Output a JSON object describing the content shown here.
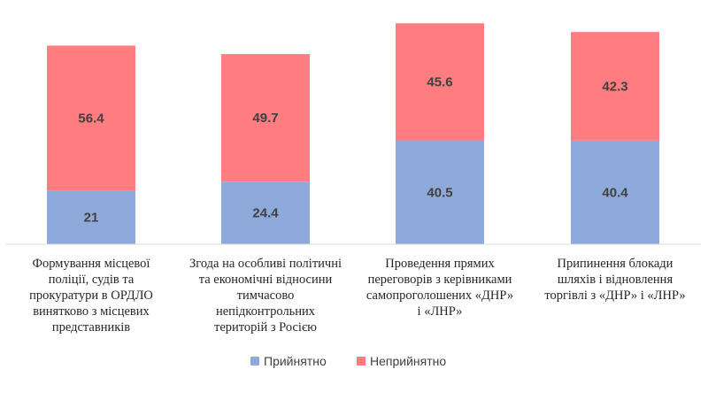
{
  "chart_data": {
    "type": "bar",
    "stacked": true,
    "categories": [
      [
        "Формування місцевої",
        "поліції, судів та",
        "прокуратури в ОРДЛО",
        "винятково з місцевих",
        "представників"
      ],
      [
        "Згода на особливі політичні",
        "та економічні відносини",
        "тимчасово",
        "непідконтрольних",
        "територій з Росією"
      ],
      [
        "Проведення прямих",
        "переговорів з керівниками",
        "самопроголошених «ДНР»",
        "і «ЛНР»"
      ],
      [
        "Припинення блокади",
        "шляхів і відновлення",
        "торгівлі з «ДНР» і «ЛНР»"
      ]
    ],
    "series": [
      {
        "name": "Прийнятно",
        "values": [
          21,
          24.4,
          40.5,
          40.4
        ],
        "labels": [
          "21",
          "24.4",
          "40.5",
          "40.4"
        ],
        "color": "#8eaadb"
      },
      {
        "name": "Неприйнятно",
        "values": [
          56.4,
          49.7,
          45.6,
          42.3
        ],
        "labels": [
          "56.4",
          "49.7",
          "45.6",
          "42.3"
        ],
        "color": "#ff7c80"
      }
    ],
    "ylim": [
      0,
      100
    ],
    "grid": false,
    "legend_position": "bottom",
    "title": "",
    "xlabel": "",
    "ylabel": ""
  }
}
